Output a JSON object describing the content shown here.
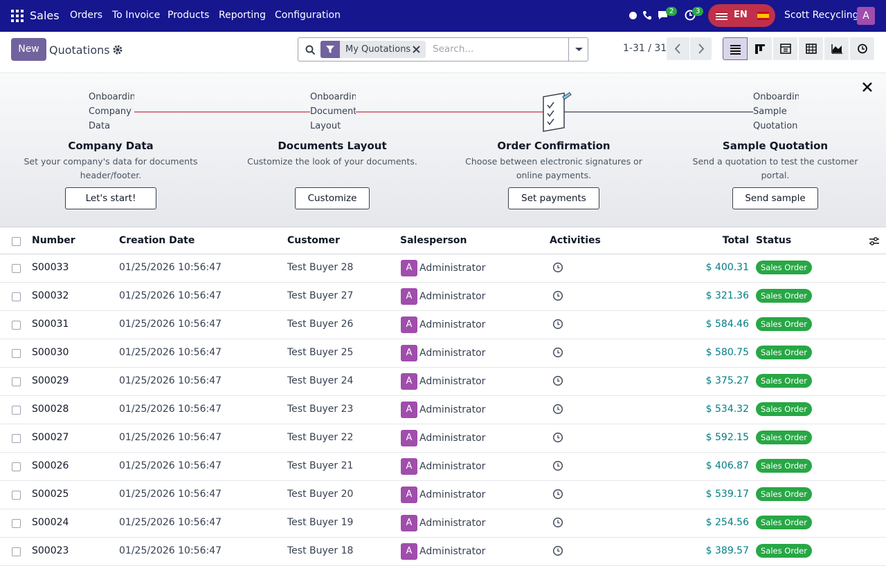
{
  "navbar": {
    "app": "Sales",
    "menu": [
      "Orders",
      "To Invoice",
      "Products",
      "Reporting",
      "Configuration"
    ],
    "messages_count": "2",
    "activities_count": "3",
    "lang": "EN",
    "company": "Scott Recycling",
    "avatar": "A"
  },
  "control": {
    "new": "New",
    "title": "Quotations",
    "filter": "My Quotations",
    "search_placeholder": "Search...",
    "pager": "1-31 / 31"
  },
  "onboarding": {
    "steps": [
      {
        "image_alt": "Onboarding Company Data",
        "title": "Company Data",
        "description": "Set your company's data for documents header/footer.",
        "button": "Let's start!"
      },
      {
        "image_alt": "Onboarding Document Layout",
        "title": "Documents Layout",
        "description": "Customize the look of your documents.",
        "button": "Customize"
      },
      {
        "title": "Order Confirmation",
        "description": "Choose between electronic signatures or online payments.",
        "button": "Set payments"
      },
      {
        "image_alt": "Onboarding Sample Quotation",
        "title": "Sample Quotation",
        "description": "Send a quotation to test the customer portal.",
        "button": "Send sample"
      }
    ]
  },
  "table": {
    "headers": [
      "Number",
      "Creation Date",
      "Customer",
      "Salesperson",
      "Activities",
      "Total",
      "Status"
    ],
    "rows": [
      {
        "number": "S00033",
        "date": "01/25/2026 10:56:47",
        "customer": "Test Buyer 28",
        "avatar": "A",
        "salesperson": "Administrator",
        "total": "$ 400.31",
        "status": "Sales Order"
      },
      {
        "number": "S00032",
        "date": "01/25/2026 10:56:47",
        "customer": "Test Buyer 27",
        "avatar": "A",
        "salesperson": "Administrator",
        "total": "$ 321.36",
        "status": "Sales Order"
      },
      {
        "number": "S00031",
        "date": "01/25/2026 10:56:47",
        "customer": "Test Buyer 26",
        "avatar": "A",
        "salesperson": "Administrator",
        "total": "$ 584.46",
        "status": "Sales Order"
      },
      {
        "number": "S00030",
        "date": "01/25/2026 10:56:47",
        "customer": "Test Buyer 25",
        "avatar": "A",
        "salesperson": "Administrator",
        "total": "$ 580.75",
        "status": "Sales Order"
      },
      {
        "number": "S00029",
        "date": "01/25/2026 10:56:47",
        "customer": "Test Buyer 24",
        "avatar": "A",
        "salesperson": "Administrator",
        "total": "$ 375.27",
        "status": "Sales Order"
      },
      {
        "number": "S00028",
        "date": "01/25/2026 10:56:47",
        "customer": "Test Buyer 23",
        "avatar": "A",
        "salesperson": "Administrator",
        "total": "$ 534.32",
        "status": "Sales Order"
      },
      {
        "number": "S00027",
        "date": "01/25/2026 10:56:47",
        "customer": "Test Buyer 22",
        "avatar": "A",
        "salesperson": "Administrator",
        "total": "$ 592.15",
        "status": "Sales Order"
      },
      {
        "number": "S00026",
        "date": "01/25/2026 10:56:47",
        "customer": "Test Buyer 21",
        "avatar": "A",
        "salesperson": "Administrator",
        "total": "$ 406.87",
        "status": "Sales Order"
      },
      {
        "number": "S00025",
        "date": "01/25/2026 10:56:47",
        "customer": "Test Buyer 20",
        "avatar": "A",
        "salesperson": "Administrator",
        "total": "$ 539.17",
        "status": "Sales Order"
      },
      {
        "number": "S00024",
        "date": "01/25/2026 10:56:47",
        "customer": "Test Buyer 19",
        "avatar": "A",
        "salesperson": "Administrator",
        "total": "$ 254.56",
        "status": "Sales Order"
      },
      {
        "number": "S00023",
        "date": "01/25/2026 10:56:47",
        "customer": "Test Buyer 18",
        "avatar": "A",
        "salesperson": "Administrator",
        "total": "$ 389.57",
        "status": "Sales Order"
      }
    ]
  }
}
